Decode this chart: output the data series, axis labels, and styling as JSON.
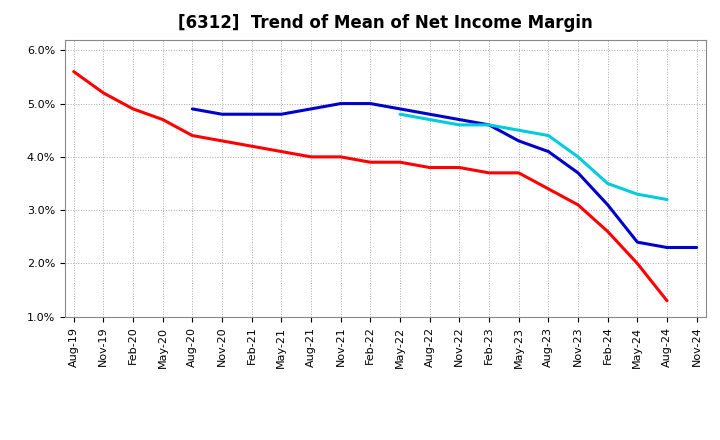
{
  "title": "[6312]  Trend of Mean of Net Income Margin",
  "xlabels": [
    "Aug-19",
    "Nov-19",
    "Feb-20",
    "May-20",
    "Aug-20",
    "Nov-20",
    "Feb-21",
    "May-21",
    "Aug-21",
    "Nov-21",
    "Feb-22",
    "May-22",
    "Aug-22",
    "Nov-22",
    "Feb-23",
    "May-23",
    "Aug-23",
    "Nov-23",
    "Feb-24",
    "May-24",
    "Aug-24",
    "Nov-24"
  ],
  "series": {
    "3 Years": {
      "color": "#ff0000",
      "values": [
        0.056,
        0.052,
        0.049,
        0.047,
        0.044,
        0.043,
        0.042,
        0.041,
        0.04,
        0.04,
        0.039,
        0.039,
        0.038,
        0.038,
        0.037,
        0.037,
        0.034,
        0.031,
        0.026,
        0.02,
        0.013,
        null
      ]
    },
    "5 Years": {
      "color": "#0000cc",
      "values": [
        null,
        null,
        null,
        null,
        0.049,
        0.048,
        0.048,
        0.048,
        0.049,
        0.05,
        0.05,
        0.049,
        0.048,
        0.047,
        0.046,
        0.043,
        0.041,
        0.037,
        0.031,
        0.024,
        0.023,
        0.023
      ]
    },
    "7 Years": {
      "color": "#00ccdd",
      "values": [
        null,
        null,
        null,
        null,
        null,
        null,
        null,
        null,
        null,
        null,
        null,
        0.048,
        0.047,
        0.046,
        0.046,
        0.045,
        0.044,
        0.04,
        0.035,
        0.033,
        0.032,
        null
      ]
    },
    "10 Years": {
      "color": "#008000",
      "values": [
        null,
        null,
        null,
        null,
        null,
        null,
        null,
        null,
        null,
        null,
        null,
        null,
        null,
        null,
        null,
        null,
        null,
        null,
        null,
        null,
        null,
        null
      ]
    }
  },
  "ylim": [
    0.01,
    0.062
  ],
  "yticks": [
    0.01,
    0.02,
    0.03,
    0.04,
    0.05,
    0.06
  ],
  "background_color": "#ffffff",
  "grid_color": "#aaaaaa",
  "title_fontsize": 12,
  "tick_fontsize": 8,
  "legend_fontsize": 9,
  "linewidth": 2.2
}
